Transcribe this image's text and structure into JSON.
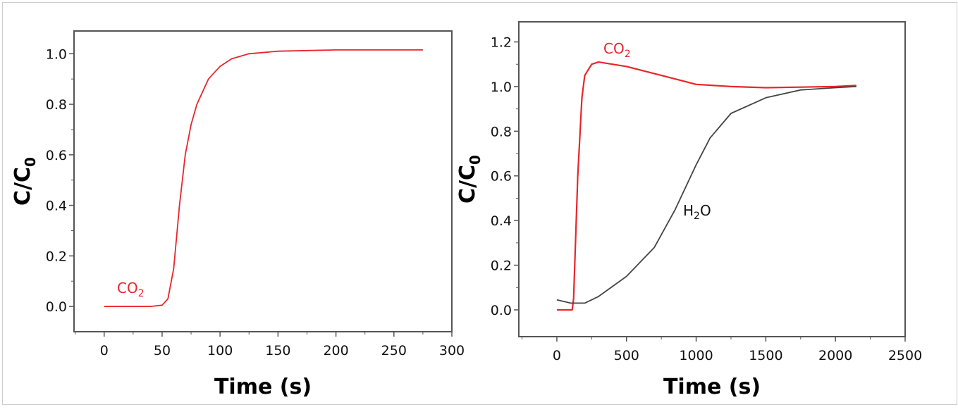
{
  "chart_data": [
    {
      "type": "line",
      "xlabel": "Time (s)",
      "ylabel_main": "C/C",
      "ylabel_sub": "0",
      "xlim": [
        -26,
        300
      ],
      "ylim": [
        -0.1,
        1.09
      ],
      "xticks": [
        0,
        50,
        100,
        150,
        200,
        250,
        300
      ],
      "yticks": [
        0.0,
        0.2,
        0.4,
        0.6,
        0.8,
        1.0
      ],
      "ytick_labels": [
        "0.0",
        "0.2",
        "0.4",
        "0.6",
        "0.8",
        "1.0"
      ],
      "grid": false,
      "series": [
        {
          "name": "CO2",
          "label_main": "CO",
          "label_sub": "2",
          "color": "#e8262b",
          "x": [
            0,
            20,
            40,
            50,
            55,
            60,
            65,
            70,
            75,
            80,
            90,
            100,
            110,
            125,
            150,
            200,
            275
          ],
          "y": [
            0,
            0,
            0,
            0.005,
            0.03,
            0.15,
            0.4,
            0.6,
            0.72,
            0.8,
            0.9,
            0.95,
            0.98,
            1.0,
            1.01,
            1.015,
            1.015
          ]
        }
      ]
    },
    {
      "type": "line",
      "xlabel": "Time (s)",
      "ylabel_main": "C/C",
      "ylabel_sub": "0",
      "xlim": [
        -273,
        2500
      ],
      "ylim": [
        -0.12,
        1.29
      ],
      "xticks": [
        0,
        500,
        1000,
        1500,
        2000,
        2500
      ],
      "yticks": [
        0.0,
        0.2,
        0.4,
        0.6,
        0.8,
        1.0,
        1.2
      ],
      "ytick_labels": [
        "0.0",
        "0.2",
        "0.4",
        "0.6",
        "0.8",
        "1.0",
        "1.2"
      ],
      "grid": false,
      "series": [
        {
          "name": "CO2",
          "label_main": "CO",
          "label_sub": "2",
          "color": "#e8262b",
          "x": [
            0,
            110,
            120,
            150,
            180,
            200,
            250,
            300,
            500,
            750,
            1000,
            1250,
            1500,
            2000,
            2150
          ],
          "y": [
            0,
            0,
            0.05,
            0.6,
            0.95,
            1.05,
            1.1,
            1.11,
            1.09,
            1.05,
            1.01,
            1.0,
            0.995,
            1.0,
            1.005
          ]
        },
        {
          "name": "H2O",
          "label_main": "H",
          "label_sub": "2",
          "label_tail": "O",
          "color": "#444444",
          "x": [
            0,
            100,
            200,
            300,
            500,
            700,
            850,
            1000,
            1100,
            1250,
            1500,
            1750,
            2000,
            2150
          ],
          "y": [
            0.045,
            0.03,
            0.03,
            0.06,
            0.15,
            0.28,
            0.45,
            0.65,
            0.77,
            0.88,
            0.95,
            0.985,
            0.995,
            1.0
          ]
        }
      ]
    }
  ]
}
